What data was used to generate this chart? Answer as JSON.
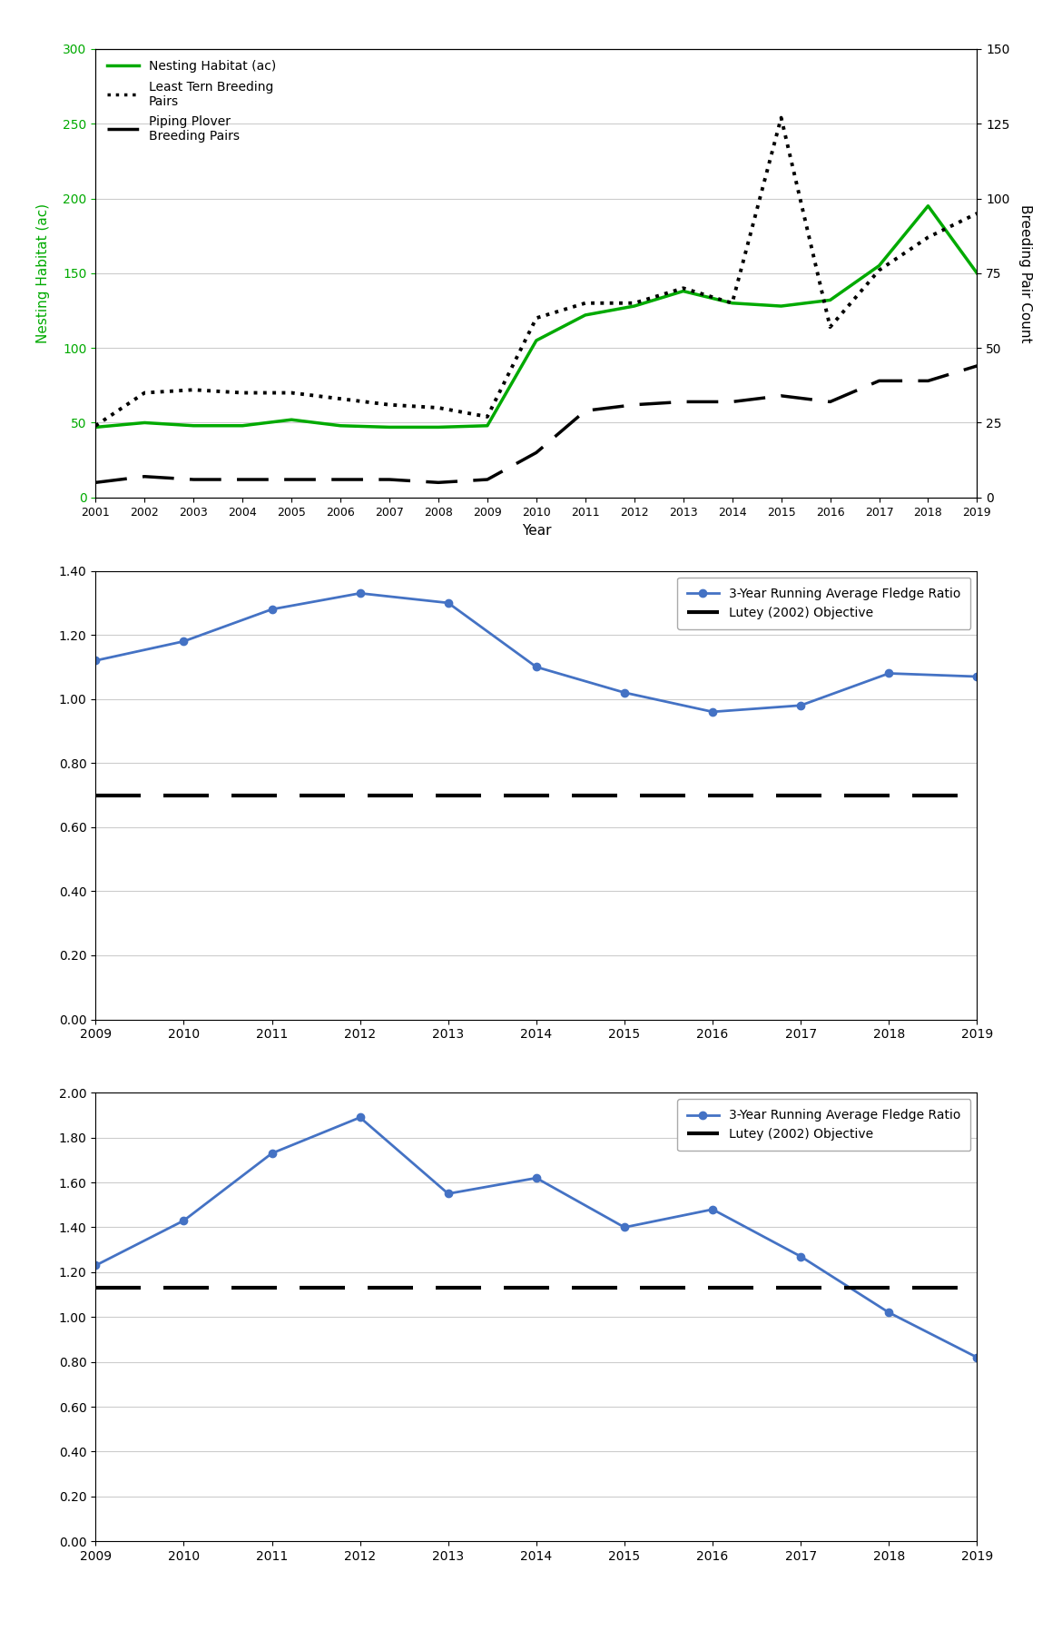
{
  "chart1": {
    "years": [
      2001,
      2002,
      2003,
      2004,
      2005,
      2006,
      2007,
      2008,
      2009,
      2010,
      2011,
      2012,
      2013,
      2014,
      2015,
      2016,
      2017,
      2018,
      2019
    ],
    "nesting_habitat": [
      47,
      50,
      48,
      48,
      52,
      48,
      47,
      47,
      48,
      105,
      122,
      128,
      138,
      130,
      128,
      132,
      155,
      195,
      150
    ],
    "least_tern": [
      24,
      35,
      36,
      35,
      35,
      33,
      31,
      30,
      27,
      60,
      65,
      65,
      70,
      65,
      127,
      57,
      76,
      87,
      95
    ],
    "piping_plover": [
      5,
      7,
      6,
      6,
      6,
      6,
      6,
      5,
      6,
      15,
      29,
      31,
      32,
      32,
      34,
      32,
      39,
      39,
      44
    ],
    "left_ylim": [
      0,
      300
    ],
    "right_ylim": [
      0,
      150
    ],
    "left_yticks": [
      0,
      50,
      100,
      150,
      200,
      250,
      300
    ],
    "right_yticks": [
      0,
      25,
      50,
      75,
      100,
      125,
      150
    ],
    "xlabel": "Year",
    "left_ylabel": "Nesting Habitat (ac)",
    "right_ylabel": "Breeding Pair Count",
    "habitat_color": "#00aa00",
    "tern_color": "#000000",
    "plover_color": "#000000",
    "legend_habitat": "Nesting Habitat (ac)",
    "legend_tern": "Least Tern Breeding\nPairs",
    "legend_plover": "Piping Plover\nBreeding Pairs"
  },
  "chart2": {
    "years": [
      2009,
      2010,
      2011,
      2012,
      2013,
      2014,
      2015,
      2016,
      2017,
      2018,
      2019
    ],
    "fledge_ratio": [
      1.12,
      1.18,
      1.28,
      1.33,
      1.3,
      1.1,
      1.02,
      0.96,
      0.98,
      1.08,
      1.07
    ],
    "objective": 0.7,
    "ylim": [
      0.0,
      1.4
    ],
    "yticks": [
      0.0,
      0.2,
      0.4,
      0.6,
      0.8,
      1.0,
      1.2,
      1.4
    ],
    "line_color": "#4472C4",
    "objective_color": "#000000",
    "legend_ratio": "3-Year Running Average Fledge Ratio",
    "legend_obj": "Lutey (2002) Objective"
  },
  "chart3": {
    "years": [
      2009,
      2010,
      2011,
      2012,
      2013,
      2014,
      2015,
      2016,
      2017,
      2018,
      2019
    ],
    "fledge_ratio": [
      1.23,
      1.43,
      1.73,
      1.89,
      1.55,
      1.62,
      1.4,
      1.48,
      1.27,
      1.02,
      0.82
    ],
    "objective": 1.13,
    "ylim": [
      0.0,
      2.0
    ],
    "yticks": [
      0.0,
      0.2,
      0.4,
      0.6,
      0.8,
      1.0,
      1.2,
      1.4,
      1.6,
      1.8,
      2.0
    ],
    "line_color": "#4472C4",
    "objective_color": "#000000",
    "legend_ratio": "3-Year Running Average Fledge Ratio",
    "legend_obj": "Lutey (2002) Objective"
  }
}
